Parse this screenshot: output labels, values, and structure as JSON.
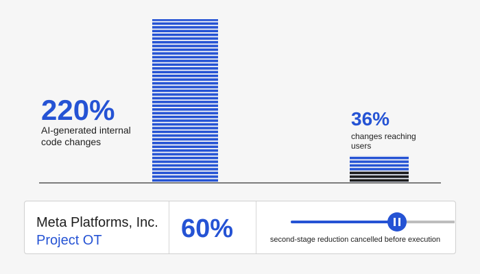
{
  "chart_data": {
    "type": "bar",
    "categories": [
      "AI-generated internal code changes",
      "changes reaching users"
    ],
    "values": [
      220,
      36
    ],
    "value_labels": [
      "220%",
      "36%"
    ],
    "color": "#2553d4"
  },
  "card": {
    "company": "Meta Platforms, Inc.",
    "project": "Project OT",
    "value": 60,
    "value_label": "60%",
    "slider_lim": [
      0,
      100
    ],
    "caption": "second-stage reduction cancelled before execution"
  }
}
